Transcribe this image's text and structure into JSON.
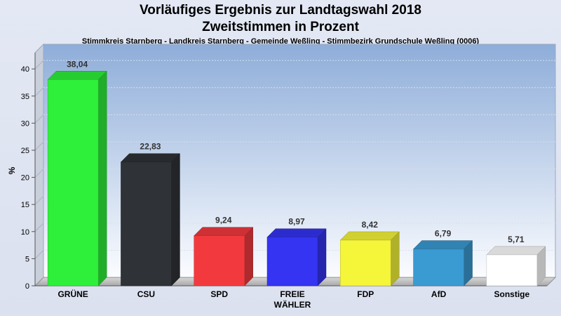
{
  "chart_data": {
    "type": "bar",
    "title": "Vorläufiges Ergebnis zur Landtagswahl 2018",
    "subtitle_line2": "Zweitstimmen in Prozent",
    "subtitle": "Stimmkreis Starnberg - Landkreis Starnberg - Gemeinde Weßling - Stimmbezirk Grundschule Weßling (0006)",
    "ylabel": "%",
    "ylim": [
      0,
      43
    ],
    "yticks": [
      0,
      5,
      10,
      15,
      20,
      25,
      30,
      35,
      40
    ],
    "categories": [
      [
        "GRÜNE"
      ],
      [
        "CSU"
      ],
      [
        "SPD"
      ],
      [
        "FREIE",
        "WÄHLER"
      ],
      [
        "FDP"
      ],
      [
        "AfD"
      ],
      [
        "Sonstige"
      ]
    ],
    "values": [
      38.04,
      22.83,
      9.24,
      8.97,
      8.42,
      6.79,
      5.71
    ],
    "value_labels": [
      "38,04",
      "22,83",
      "9,24",
      "8,97",
      "8,42",
      "6,79",
      "5,71"
    ],
    "colors": [
      "#2ef03a",
      "#2f3236",
      "#f23a3e",
      "#3434f2",
      "#f5f53a",
      "#3a9ad2",
      "#ffffff"
    ],
    "grid": true
  }
}
